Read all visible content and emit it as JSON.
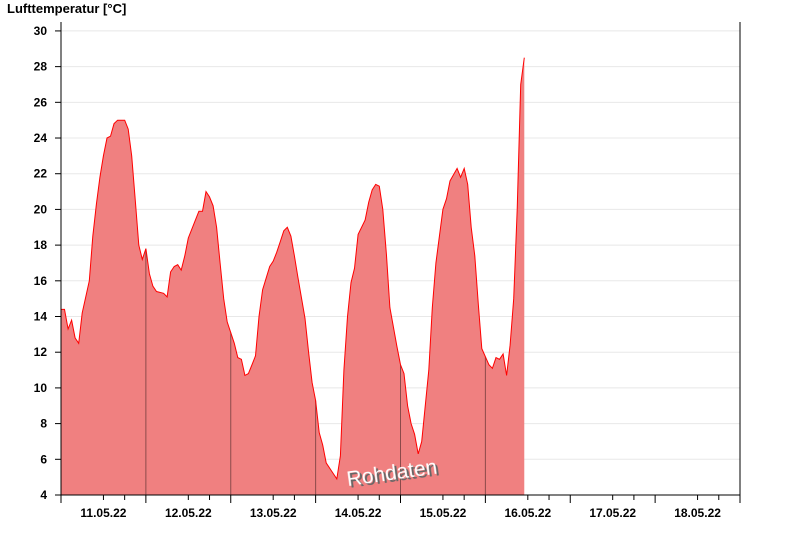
{
  "chart_data": {
    "type": "area",
    "title": "Lufttemperatur [°C]",
    "ylabel": "",
    "xlabel": "",
    "ylim": [
      4,
      30.5
    ],
    "yticks": [
      4,
      6,
      8,
      10,
      12,
      14,
      16,
      18,
      20,
      22,
      24,
      26,
      28,
      30
    ],
    "xlim": [
      "11.05.22",
      "18.05.22"
    ],
    "xtick_labels": [
      "11.05.22",
      "12.05.22",
      "13.05.22",
      "14.05.22",
      "15.05.22",
      "16.05.22",
      "17.05.22",
      "18.05.22"
    ],
    "grid": true,
    "watermark": "Rohdaten",
    "colors": {
      "fill": "#f08080",
      "line": "#ff0000",
      "grid": "#e8e8e8",
      "day_separator": "#8b4a4a"
    },
    "series": [
      {
        "days": [
          {
            "date": "11.05.22",
            "hours": [
              0,
              1,
              2,
              3,
              4,
              5,
              6,
              8,
              9,
              10,
              11,
              12,
              13,
              14,
              15,
              16,
              18,
              19,
              20,
              21,
              22,
              23
            ],
            "values": [
              14.4,
              14.4,
              13.3,
              13.8,
              12.8,
              12.5,
              14.2,
              16,
              18.5,
              20.3,
              21.8,
              23,
              24,
              24.1,
              24.8,
              25,
              25,
              24.5,
              23,
              20.5,
              18,
              17.2
            ]
          },
          {
            "date": "12.05.22",
            "hours": [
              0,
              1,
              2,
              3,
              5,
              6,
              7,
              8,
              9,
              10,
              11,
              12,
              14,
              15,
              16,
              17,
              18,
              19,
              20,
              21,
              22,
              23
            ],
            "values": [
              17.8,
              16.4,
              15.7,
              15.4,
              15.3,
              15.1,
              16.5,
              16.8,
              16.9,
              16.6,
              17.4,
              18.4,
              19.4,
              19.9,
              19.9,
              21,
              20.7,
              20.2,
              19,
              17,
              15,
              13.7
            ]
          },
          {
            "date": "13.05.22",
            "hours": [
              1,
              2,
              3,
              4,
              5,
              6,
              7,
              8,
              9,
              11,
              12,
              13,
              14,
              15,
              16,
              17,
              18,
              19,
              21,
              22,
              23
            ],
            "values": [
              12.5,
              11.7,
              11.6,
              10.7,
              10.8,
              11.3,
              11.8,
              14,
              15.5,
              16.8,
              17.1,
              17.6,
              18.2,
              18.8,
              19,
              18.5,
              17.4,
              16.2,
              13.9,
              12,
              10.3
            ]
          },
          {
            "date": "14.05.22",
            "hours": [
              0,
              1,
              2,
              3,
              5,
              6,
              7,
              8,
              9,
              10,
              11,
              12,
              14,
              15,
              16,
              17,
              18,
              19,
              20,
              21,
              23
            ],
            "values": [
              9.3,
              7.5,
              6.8,
              5.8,
              5.2,
              4.9,
              6.2,
              11,
              14,
              15.9,
              16.7,
              18.6,
              19.4,
              20.4,
              21.1,
              21.4,
              21.3,
              20,
              17.5,
              14.5,
              12.3
            ]
          },
          {
            "date": "15.05.22",
            "hours": [
              0,
              1,
              2,
              3,
              4,
              5,
              6,
              8,
              9,
              10,
              11,
              12,
              13,
              14,
              16,
              17,
              18,
              19,
              20,
              21,
              22,
              23
            ],
            "values": [
              11.3,
              10.8,
              9,
              8,
              7.4,
              6.3,
              7,
              11,
              14.5,
              17,
              18.5,
              20,
              20.6,
              21.6,
              22.3,
              21.8,
              22.3,
              21.4,
              19,
              17.4,
              14.7,
              12.2
            ]
          },
          {
            "date": "16.05.22",
            "hours": [
              1,
              2,
              3,
              4,
              5,
              6,
              7,
              8,
              9,
              10,
              11
            ],
            "values": [
              11.3,
              11.1,
              11.7,
              11.6,
              11.9,
              10.7,
              12.4,
              15,
              20,
              27,
              28.5
            ]
          }
        ]
      }
    ]
  }
}
